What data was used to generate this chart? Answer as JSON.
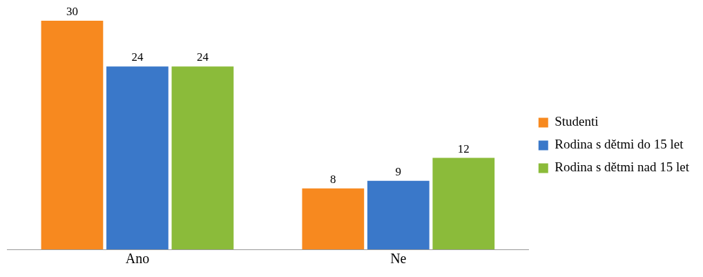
{
  "chart_data": {
    "type": "bar",
    "categories": [
      "Ano",
      "Ne"
    ],
    "series": [
      {
        "name": "Studenti",
        "color": "#f7891f",
        "values": [
          30,
          8
        ]
      },
      {
        "name": "Rodina s dětmi do 15 let",
        "color": "#3a78c9",
        "values": [
          24,
          9
        ]
      },
      {
        "name": "Rodina s dětmi nad 15 let",
        "color": "#8bbb3a",
        "values": [
          24,
          12
        ]
      }
    ],
    "data_labels": true,
    "legend": "right",
    "grid": false,
    "tick_labels": "x"
  }
}
